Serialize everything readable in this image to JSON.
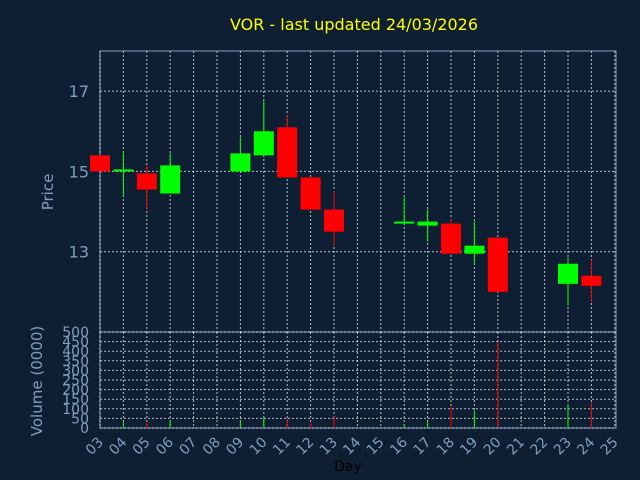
{
  "chart_data": {
    "type": "candlestick",
    "title": "VOR - last updated 24/03/2026",
    "xlabel": "Day",
    "ylabel": "Price",
    "volume_label": "Volume (0000)",
    "x_ticks": [
      "03",
      "04",
      "05",
      "06",
      "07",
      "08",
      "09",
      "10",
      "11",
      "12",
      "13",
      "14",
      "15",
      "16",
      "17",
      "18",
      "19",
      "20",
      "21",
      "22",
      "23",
      "24",
      "25"
    ],
    "y_ticks": [
      13,
      15,
      17
    ],
    "ylim": [
      11.0,
      18.0
    ],
    "volume_ticks": [
      0,
      50,
      100,
      150,
      200,
      250,
      300,
      350,
      400,
      450,
      500
    ],
    "volume_ylim": [
      0,
      500
    ],
    "grid": true,
    "colors": {
      "background": "#0f1f33",
      "up": "#00ff00",
      "down": "#ff0000",
      "title": "#ffff00",
      "axis_text": "#7f9fc0",
      "grid": "#ffffff"
    },
    "candles": [
      {
        "day": "03",
        "open": 15.4,
        "high": 15.4,
        "low": 15.0,
        "close": 15.0,
        "volume": 0
      },
      {
        "day": "04",
        "open": 15.0,
        "high": 15.5,
        "low": 14.4,
        "close": 15.05,
        "volume": 30
      },
      {
        "day": "05",
        "open": 14.95,
        "high": 15.15,
        "low": 14.05,
        "close": 14.55,
        "volume": 25
      },
      {
        "day": "06",
        "open": 14.45,
        "high": 15.45,
        "low": 14.45,
        "close": 15.15,
        "volume": 35
      },
      {
        "day": "09",
        "open": 15.0,
        "high": 15.85,
        "low": 15.0,
        "close": 15.45,
        "volume": 40
      },
      {
        "day": "10",
        "open": 15.4,
        "high": 16.75,
        "low": 15.4,
        "close": 16.0,
        "volume": 55
      },
      {
        "day": "11",
        "open": 16.1,
        "high": 16.4,
        "low": 14.85,
        "close": 14.85,
        "volume": 50
      },
      {
        "day": "12",
        "open": 14.85,
        "high": 14.85,
        "low": 14.05,
        "close": 14.05,
        "volume": 25
      },
      {
        "day": "13",
        "open": 14.05,
        "high": 14.5,
        "low": 13.15,
        "close": 13.5,
        "volume": 60
      },
      {
        "day": "16",
        "open": 13.75,
        "high": 14.35,
        "low": 13.7,
        "close": 13.75,
        "volume": 20
      },
      {
        "day": "17",
        "open": 13.65,
        "high": 14.05,
        "low": 13.25,
        "close": 13.75,
        "volume": 30
      },
      {
        "day": "18",
        "open": 13.7,
        "high": 13.8,
        "low": 12.95,
        "close": 12.95,
        "volume": 110
      },
      {
        "day": "19",
        "open": 12.95,
        "high": 13.75,
        "low": 12.7,
        "close": 13.15,
        "volume": 90
      },
      {
        "day": "20",
        "open": 13.35,
        "high": 13.35,
        "low": 12.0,
        "close": 12.0,
        "volume": 450
      },
      {
        "day": "23",
        "open": 12.2,
        "high": 12.85,
        "low": 11.65,
        "close": 12.7,
        "volume": 120
      },
      {
        "day": "24",
        "open": 12.4,
        "high": 12.8,
        "low": 11.75,
        "close": 12.15,
        "volume": 130
      }
    ]
  }
}
